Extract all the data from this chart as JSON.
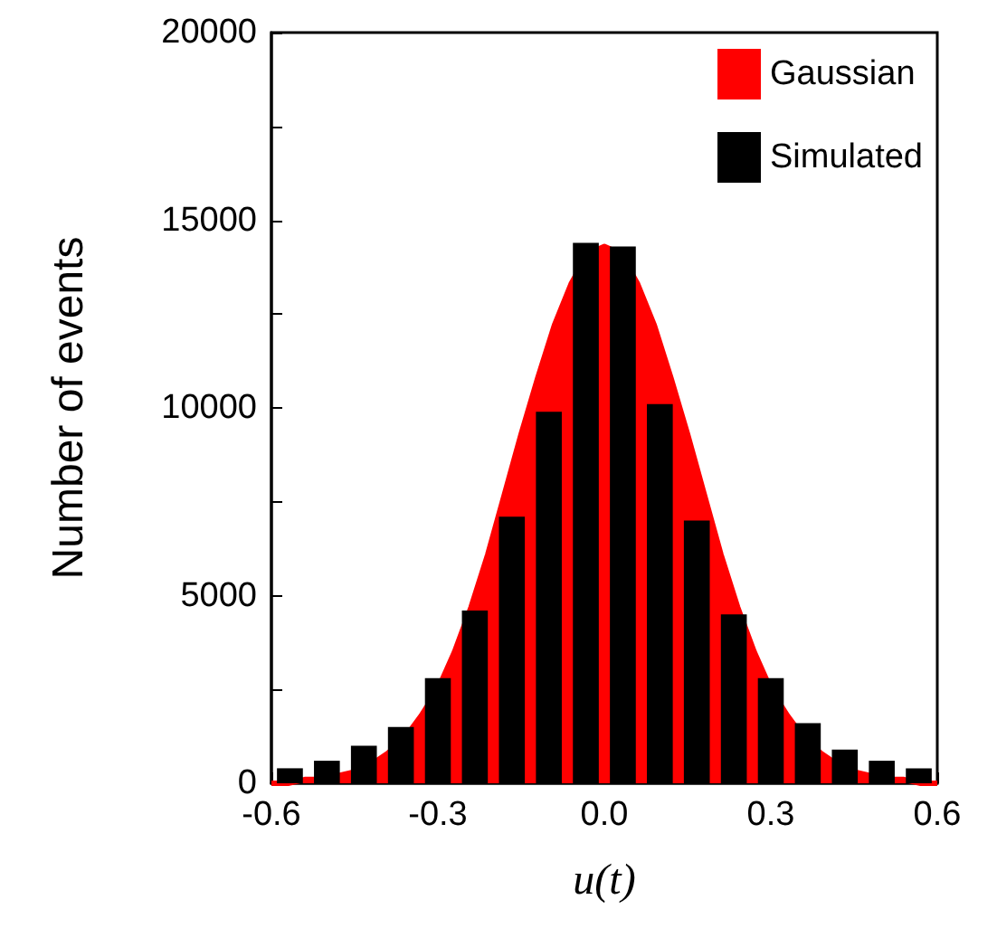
{
  "chart_data": {
    "type": "histogram",
    "xlabel": "u(t)",
    "ylabel": "Number of events",
    "bins": [
      -0.6,
      -0.5333,
      -0.4667,
      -0.4,
      -0.3333,
      -0.2667,
      -0.2,
      -0.1333,
      -0.0667,
      0,
      0.0667,
      0.1333,
      0.2,
      0.2667,
      0.3333,
      0.4,
      0.4667,
      0.5333,
      0.6
    ],
    "series": [
      {
        "name": "Gaussian",
        "type": "area",
        "color": "#ff0000",
        "x": [
          -0.6,
          -0.57,
          -0.54,
          -0.51,
          -0.48,
          -0.45,
          -0.42,
          -0.39,
          -0.36,
          -0.33,
          -0.3,
          -0.27,
          -0.24,
          -0.21,
          -0.18,
          -0.15,
          -0.12,
          -0.09,
          -0.06,
          -0.03,
          0,
          0.03,
          0.06,
          0.09,
          0.12,
          0.15,
          0.18,
          0.21,
          0.24,
          0.27,
          0.3,
          0.33,
          0.36,
          0.39,
          0.42,
          0.45,
          0.48,
          0.51,
          0.54,
          0.57,
          0.6
        ],
        "values": [
          0,
          0,
          100,
          100,
          200,
          300,
          500,
          800,
          1200,
          1800,
          2500,
          3500,
          4700,
          6100,
          7700,
          9300,
          10800,
          12200,
          13300,
          14100,
          14300,
          14100,
          13300,
          12200,
          10800,
          9300,
          7700,
          6100,
          4700,
          3500,
          2500,
          1800,
          1200,
          800,
          500,
          300,
          200,
          100,
          100,
          0,
          0
        ]
      },
      {
        "name": "Simulated",
        "color": "#000000",
        "values": [
          400,
          600,
          1000,
          1500,
          2800,
          4600,
          7100,
          9900,
          14400,
          14300,
          10100,
          7000,
          4500,
          2800,
          1600,
          900,
          600,
          400
        ]
      }
    ],
    "xlim": [
      -0.6,
      0.6
    ],
    "xticks": [
      {
        "value": -0.6,
        "label": "-0.6"
      },
      {
        "value": -0.3,
        "label": "-0.3"
      },
      {
        "value": 0,
        "label": "0.0"
      },
      {
        "value": 0.3,
        "label": "0.3"
      },
      {
        "value": 0.6,
        "label": "0.6"
      }
    ],
    "ylim": [
      0,
      20000
    ],
    "yticks": [
      0,
      {
        "value": 2500,
        "label": null
      },
      5000,
      {
        "value": 7500,
        "label": null
      },
      10000,
      {
        "value": 12500,
        "label": null
      },
      15000,
      {
        "value": 17500,
        "label": null
      },
      20000
    ],
    "grid": false,
    "legend": "top right"
  }
}
